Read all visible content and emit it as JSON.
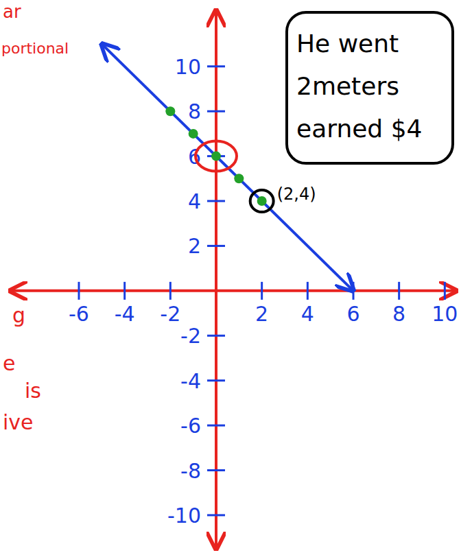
{
  "chart_data": {
    "type": "line",
    "xlim": [
      -9,
      10.5
    ],
    "ylim": [
      -11.5,
      12.5
    ],
    "xticks": [
      -6,
      -4,
      -2,
      2,
      4,
      6,
      8,
      10
    ],
    "yticks": [
      10,
      8,
      6,
      4,
      2,
      -2,
      -4,
      -6,
      -8,
      -10
    ],
    "grid": false,
    "series": [
      {
        "type": "line",
        "color": "#1a3ee0",
        "line_style": "solid",
        "x": [
          -5,
          6
        ],
        "values": [
          11,
          0
        ]
      },
      {
        "type": "scatter",
        "color": "#23a12a",
        "marker": "circle",
        "x": [
          -2,
          -1,
          0,
          1,
          2
        ],
        "values": [
          8,
          7,
          6,
          5,
          4
        ]
      }
    ],
    "highlights": [
      {
        "x": 0,
        "y": 6,
        "color": "#e8231f"
      },
      {
        "x": 2,
        "y": 4,
        "color": "#000000",
        "label": "(2,4)"
      }
    ],
    "callout": [
      "He went",
      "2meters",
      "earned $4"
    ],
    "side_notes": [
      "ar",
      "portional",
      "g",
      "e",
      "is",
      "ive"
    ]
  }
}
